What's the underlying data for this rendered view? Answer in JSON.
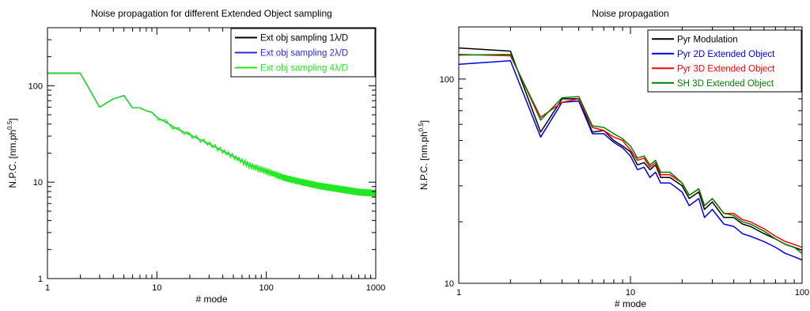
{
  "chart_data": [
    {
      "type": "line",
      "title": "Noise propagation for different Extended Object sampling",
      "xlabel": "# mode",
      "ylabel": "N.P.C. [nm.ph",
      "ylabel_sup": "0.5",
      "ylabel_end": "]",
      "xscale": "log",
      "yscale": "log",
      "xlim": [
        1,
        1000
      ],
      "ylim": [
        1,
        400
      ],
      "xticks": [
        1,
        10,
        100,
        1000
      ],
      "xtick_labels": [
        "1",
        "10",
        "100",
        "1000"
      ],
      "yticks": [
        1,
        10,
        100
      ],
      "ytick_labels": [
        "1",
        "10",
        "100"
      ],
      "legend_position": "top-right",
      "series": [
        {
          "name": "Ext obj sampling 1λ/D",
          "color": "#000000",
          "values": [
            [
              1,
              135
            ],
            [
              2,
              135
            ],
            [
              3,
              60
            ],
            [
              4,
              73
            ],
            [
              5,
              79
            ],
            [
              6,
              59
            ],
            [
              7,
              59
            ],
            [
              8,
              55
            ],
            [
              9,
              53
            ],
            [
              10,
              47
            ],
            [
              12,
              42
            ],
            [
              15,
              36
            ],
            [
              20,
              31
            ],
            [
              30,
              25
            ],
            [
              50,
              18.5
            ],
            [
              70,
              15
            ],
            [
              100,
              13
            ],
            [
              150,
              11
            ],
            [
              200,
              10.2
            ],
            [
              300,
              9.2
            ],
            [
              500,
              8.4
            ],
            [
              700,
              7.9
            ],
            [
              1000,
              7.7
            ]
          ]
        },
        {
          "name": "Ext obj sampling 2λ/D",
          "color": "#2b2bd9",
          "values": [
            [
              1,
              135
            ],
            [
              2,
              135
            ],
            [
              3,
              60
            ],
            [
              4,
              73
            ],
            [
              5,
              79
            ],
            [
              6,
              59
            ],
            [
              7,
              59
            ],
            [
              8,
              55
            ],
            [
              9,
              53
            ],
            [
              10,
              47
            ],
            [
              12,
              42
            ],
            [
              15,
              36
            ],
            [
              20,
              31
            ],
            [
              30,
              25
            ],
            [
              50,
              18.5
            ],
            [
              70,
              15
            ],
            [
              100,
              13
            ],
            [
              150,
              11
            ],
            [
              200,
              10.2
            ],
            [
              300,
              9.2
            ],
            [
              500,
              8.4
            ],
            [
              700,
              7.9
            ],
            [
              1000,
              7.7
            ]
          ]
        },
        {
          "name": "Ext obj sampling 4λ/D",
          "color": "#22e822",
          "values": [
            [
              1,
              135
            ],
            [
              2,
              135
            ],
            [
              3,
              60
            ],
            [
              4,
              73
            ],
            [
              5,
              79
            ],
            [
              6,
              59
            ],
            [
              7,
              59
            ],
            [
              8,
              55
            ],
            [
              9,
              53
            ],
            [
              10,
              47
            ],
            [
              12,
              42
            ],
            [
              15,
              36
            ],
            [
              20,
              31
            ],
            [
              30,
              25
            ],
            [
              50,
              18.5
            ],
            [
              70,
              15
            ],
            [
              100,
              13
            ],
            [
              150,
              11
            ],
            [
              200,
              10.2
            ],
            [
              300,
              9.2
            ],
            [
              500,
              8.4
            ],
            [
              700,
              7.9
            ],
            [
              1000,
              7.7
            ]
          ]
        }
      ]
    },
    {
      "type": "line",
      "title": "Noise propagation",
      "xlabel": "# mode",
      "ylabel": "N.P.C. [nm.ph",
      "ylabel_sup": "0.5",
      "ylabel_end": "]",
      "xscale": "log",
      "yscale": "log",
      "xlim": [
        1,
        100
      ],
      "ylim": [
        10,
        180
      ],
      "xticks": [
        1,
        10,
        100
      ],
      "xtick_labels": [
        "1",
        "10",
        "100"
      ],
      "yticks": [
        10,
        100
      ],
      "ytick_labels": [
        "10",
        "100"
      ],
      "legend_position": "top-right",
      "series": [
        {
          "name": "Pyr Modulation",
          "color": "#000000",
          "values": [
            [
              1,
              142
            ],
            [
              2,
              137
            ],
            [
              3,
              55
            ],
            [
              4,
              80
            ],
            [
              5,
              80
            ],
            [
              6,
              55
            ],
            [
              7,
              56
            ],
            [
              8,
              50
            ],
            [
              9,
              47
            ],
            [
              10,
              44
            ],
            [
              11,
              38
            ],
            [
              12,
              39
            ],
            [
              13,
              36
            ],
            [
              14,
              38
            ],
            [
              15,
              33
            ],
            [
              17,
              33
            ],
            [
              20,
              30
            ],
            [
              22,
              26
            ],
            [
              25,
              28
            ],
            [
              27,
              23
            ],
            [
              30,
              25
            ],
            [
              35,
              21
            ],
            [
              40,
              21
            ],
            [
              45,
              19.5
            ],
            [
              50,
              19
            ],
            [
              60,
              17.5
            ],
            [
              70,
              16.5
            ],
            [
              80,
              15.5
            ],
            [
              90,
              15
            ],
            [
              100,
              14.5
            ]
          ]
        },
        {
          "name": "Pyr 2D Extended Object",
          "color": "#0000e6",
          "values": [
            [
              1,
              118
            ],
            [
              2,
              123
            ],
            [
              3,
              52
            ],
            [
              4,
              77
            ],
            [
              5,
              78
            ],
            [
              6,
              54
            ],
            [
              7,
              54
            ],
            [
              8,
              49
            ],
            [
              9,
              46
            ],
            [
              10,
              42
            ],
            [
              11,
              36
            ],
            [
              12,
              37
            ],
            [
              13,
              33
            ],
            [
              14,
              35
            ],
            [
              15,
              31
            ],
            [
              17,
              31
            ],
            [
              20,
              28
            ],
            [
              22,
              24
            ],
            [
              25,
              26
            ],
            [
              27,
              21
            ],
            [
              30,
              23
            ],
            [
              35,
              19.5
            ],
            [
              40,
              19
            ],
            [
              45,
              17.5
            ],
            [
              50,
              17
            ],
            [
              60,
              16
            ],
            [
              70,
              15
            ],
            [
              80,
              14
            ],
            [
              90,
              13.5
            ],
            [
              100,
              13
            ]
          ]
        },
        {
          "name": "Pyr 3D Extended Object",
          "color": "#ff0000",
          "values": [
            [
              1,
              132
            ],
            [
              2,
              130
            ],
            [
              3,
              65
            ],
            [
              4,
              77
            ],
            [
              5,
              80
            ],
            [
              6,
              58
            ],
            [
              7,
              56
            ],
            [
              8,
              52
            ],
            [
              9,
              50
            ],
            [
              10,
              45
            ],
            [
              11,
              40
            ],
            [
              12,
              41
            ],
            [
              13,
              37
            ],
            [
              14,
              39
            ],
            [
              15,
              34
            ],
            [
              17,
              34
            ],
            [
              20,
              31
            ],
            [
              22,
              27
            ],
            [
              25,
              29
            ],
            [
              27,
              24
            ],
            [
              30,
              26
            ],
            [
              35,
              22
            ],
            [
              40,
              22
            ],
            [
              45,
              20.5
            ],
            [
              50,
              20
            ],
            [
              60,
              18.5
            ],
            [
              70,
              17
            ],
            [
              80,
              16
            ],
            [
              90,
              15.5
            ],
            [
              100,
              15
            ]
          ]
        },
        {
          "name": "SH 3D Extended Object",
          "color": "#008000",
          "values": [
            [
              1,
              131
            ],
            [
              2,
              132
            ],
            [
              3,
              63
            ],
            [
              4,
              81
            ],
            [
              5,
              82
            ],
            [
              6,
              59
            ],
            [
              7,
              58
            ],
            [
              8,
              54
            ],
            [
              9,
              51
            ],
            [
              10,
              47
            ],
            [
              11,
              41
            ],
            [
              12,
              42
            ],
            [
              13,
              38
            ],
            [
              14,
              40
            ],
            [
              15,
              35
            ],
            [
              17,
              35
            ],
            [
              20,
              31
            ],
            [
              22,
              27
            ],
            [
              25,
              29
            ],
            [
              27,
              24
            ],
            [
              30,
              26
            ],
            [
              35,
              22
            ],
            [
              40,
              21.5
            ],
            [
              45,
              20
            ],
            [
              50,
              19.5
            ],
            [
              60,
              18
            ],
            [
              70,
              16.5
            ],
            [
              80,
              15.5
            ],
            [
              90,
              15
            ],
            [
              100,
              14
            ]
          ]
        }
      ]
    }
  ]
}
